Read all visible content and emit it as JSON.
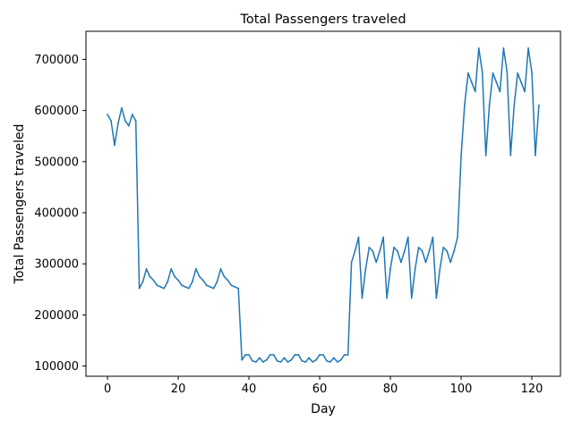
{
  "chart_data": {
    "type": "line",
    "title": "Total Passengers traveled",
    "xlabel": "Day",
    "ylabel": "Total Passengers traveled",
    "xlim": [
      -6.1,
      128.1
    ],
    "ylim": [
      80000,
      755000
    ],
    "xticks": [
      0,
      20,
      40,
      60,
      80,
      100,
      120
    ],
    "xtick_labels": [
      "0",
      "20",
      "40",
      "60",
      "80",
      "100",
      "120"
    ],
    "yticks": [
      100000,
      200000,
      300000,
      400000,
      500000,
      600000,
      700000
    ],
    "ytick_labels": [
      "100000",
      "200000",
      "300000",
      "400000",
      "500000",
      "600000",
      "700000"
    ],
    "grid": false,
    "legend": "none",
    "line_color": "#1f77b4",
    "series": [
      {
        "x": [
          0,
          1,
          2,
          3,
          4,
          5,
          6,
          7,
          8,
          9,
          10,
          11,
          12,
          13,
          14,
          15,
          16,
          17,
          18,
          19,
          20,
          21,
          22,
          23,
          24,
          25,
          26,
          27,
          28,
          29,
          30,
          31,
          32,
          33,
          34,
          35,
          36,
          37,
          38,
          39,
          40,
          41,
          42,
          43,
          44,
          45,
          46,
          47,
          48,
          49,
          50,
          51,
          52,
          53,
          54,
          55,
          56,
          57,
          58,
          59,
          60,
          61,
          62,
          63,
          64,
          65,
          66,
          67,
          68,
          69,
          70,
          71,
          72,
          73,
          74,
          75,
          76,
          77,
          78,
          79,
          80,
          81,
          82,
          83,
          84,
          85,
          86,
          87,
          88,
          89,
          90,
          91,
          92,
          93,
          94,
          95,
          96,
          97,
          98,
          99,
          100,
          101,
          102,
          103,
          104,
          105,
          106,
          107,
          108,
          109,
          110,
          111,
          112,
          113,
          114,
          115,
          116,
          117,
          118,
          119,
          120,
          121,
          122
        ],
        "values": [
          592000,
          580000,
          532000,
          575000,
          605000,
          580000,
          570000,
          592000,
          580000,
          252000,
          265000,
          290000,
          275000,
          268000,
          258000,
          255000,
          252000,
          265000,
          290000,
          275000,
          268000,
          258000,
          255000,
          252000,
          265000,
          290000,
          275000,
          268000,
          258000,
          255000,
          252000,
          265000,
          290000,
          275000,
          268000,
          258000,
          255000,
          252000,
          112000,
          122000,
          122000,
          110000,
          108000,
          116000,
          108000,
          112000,
          122000,
          122000,
          110000,
          108000,
          116000,
          108000,
          112000,
          122000,
          122000,
          110000,
          108000,
          116000,
          108000,
          112000,
          122000,
          122000,
          110000,
          108000,
          116000,
          108000,
          112000,
          122000,
          122000,
          303000,
          325000,
          352000,
          233000,
          290000,
          332000,
          325000,
          303000,
          325000,
          352000,
          233000,
          290000,
          332000,
          325000,
          303000,
          325000,
          352000,
          233000,
          290000,
          332000,
          325000,
          303000,
          325000,
          352000,
          233000,
          290000,
          332000,
          325000,
          303000,
          325000,
          352000,
          510000,
          612000,
          673000,
          655000,
          637000,
          722000,
          675000,
          512000,
          610000,
          673000,
          655000,
          637000,
          722000,
          675000,
          512000,
          610000,
          673000,
          655000,
          637000,
          722000,
          675000,
          512000,
          610000
        ]
      }
    ]
  }
}
